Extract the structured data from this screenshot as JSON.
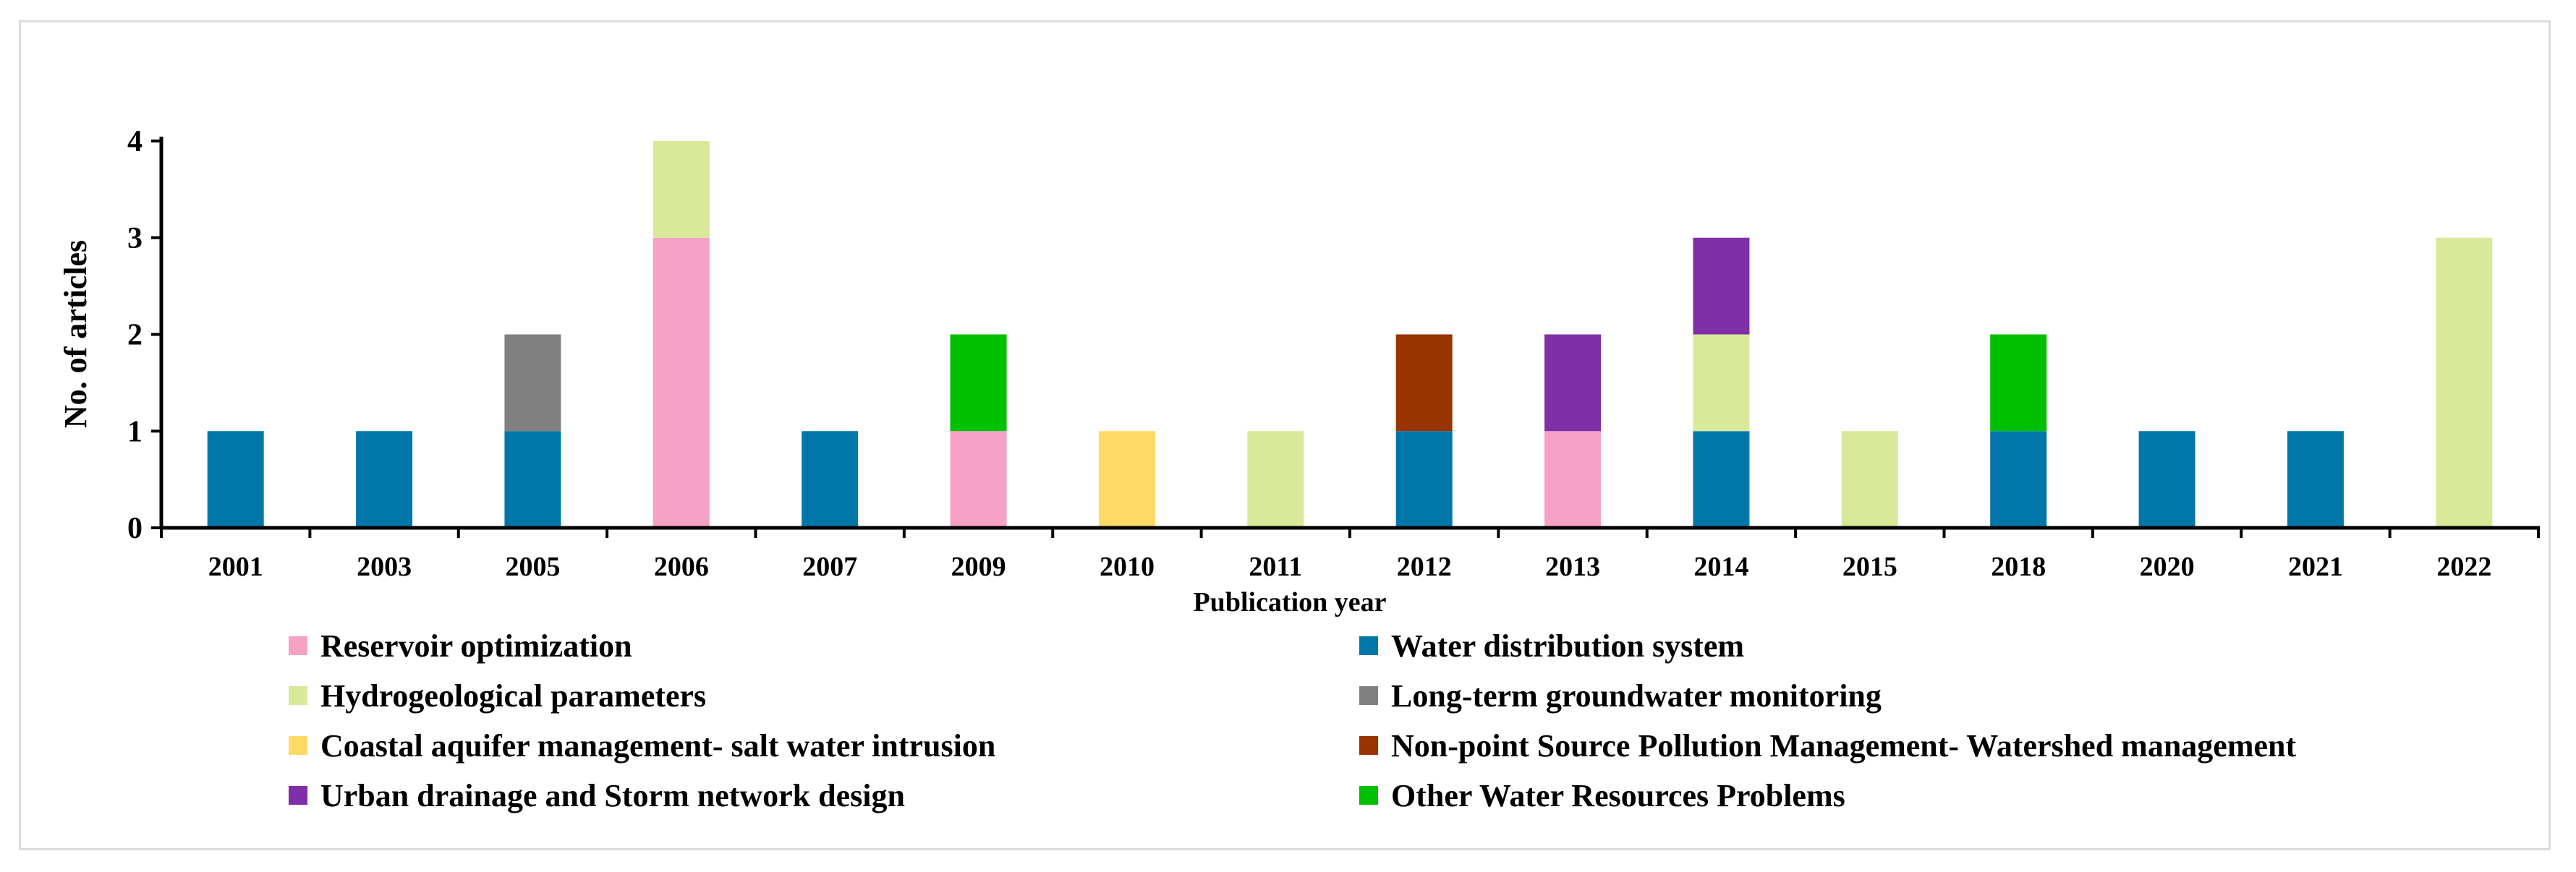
{
  "chart_data": {
    "type": "bar",
    "stacked": true,
    "title": "",
    "xlabel": "Publication year",
    "ylabel": "No. of articles",
    "ylim": [
      0,
      4
    ],
    "yticks": [
      0,
      1,
      2,
      3,
      4
    ],
    "categories": [
      "2001",
      "2003",
      "2005",
      "2006",
      "2007",
      "2009",
      "2010",
      "2011",
      "2012",
      "2013",
      "2014",
      "2015",
      "2018",
      "2020",
      "2021",
      "2022"
    ],
    "series": [
      {
        "name": "Water distribution system",
        "color": "#0077a8",
        "values": [
          1,
          1,
          1,
          0,
          1,
          0,
          0,
          0,
          1,
          0,
          1,
          0,
          1,
          1,
          1,
          0
        ]
      },
      {
        "name": "Reservoir optimization",
        "color": "#f7a1c4",
        "values": [
          0,
          0,
          0,
          3,
          0,
          1,
          0,
          0,
          0,
          1,
          0,
          0,
          0,
          0,
          0,
          0
        ]
      },
      {
        "name": "Coastal aquifer management- salt water intrusion",
        "color": "#ffd966",
        "values": [
          0,
          0,
          0,
          0,
          0,
          0,
          1,
          0,
          0,
          0,
          0,
          0,
          0,
          0,
          0,
          0
        ]
      },
      {
        "name": "Hydrogeological parameters",
        "color": "#d9e99a",
        "values": [
          0,
          0,
          0,
          1,
          0,
          0,
          0,
          1,
          0,
          0,
          1,
          1,
          0,
          0,
          0,
          3
        ]
      },
      {
        "name": "Long-term groundwater monitoring",
        "color": "#808080",
        "values": [
          0,
          0,
          1,
          0,
          0,
          0,
          0,
          0,
          0,
          0,
          0,
          0,
          0,
          0,
          0,
          0
        ]
      },
      {
        "name": "Non-point Source Pollution Management- Watershed management",
        "color": "#993300",
        "values": [
          0,
          0,
          0,
          0,
          0,
          0,
          0,
          0,
          1,
          0,
          0,
          0,
          0,
          0,
          0,
          0
        ]
      },
      {
        "name": "Urban drainage and Storm network design",
        "color": "#7f2fa8",
        "values": [
          0,
          0,
          0,
          0,
          0,
          0,
          0,
          0,
          0,
          1,
          1,
          0,
          0,
          0,
          0,
          0
        ]
      },
      {
        "name": "Other Water Resources Problems",
        "color": "#00c000",
        "values": [
          0,
          0,
          0,
          0,
          0,
          1,
          0,
          0,
          0,
          0,
          0,
          0,
          1,
          0,
          0,
          0
        ]
      }
    ],
    "legend": {
      "placement": "bottom",
      "columns": 2,
      "order": [
        "Reservoir optimization",
        "Water distribution system",
        "Hydrogeological parameters",
        "Long-term groundwater monitoring",
        "Coastal aquifer management- salt water intrusion",
        "Non-point Source Pollution Management- Watershed management",
        "Urban drainage and Storm network design",
        "Other Water Resources Problems"
      ]
    }
  }
}
